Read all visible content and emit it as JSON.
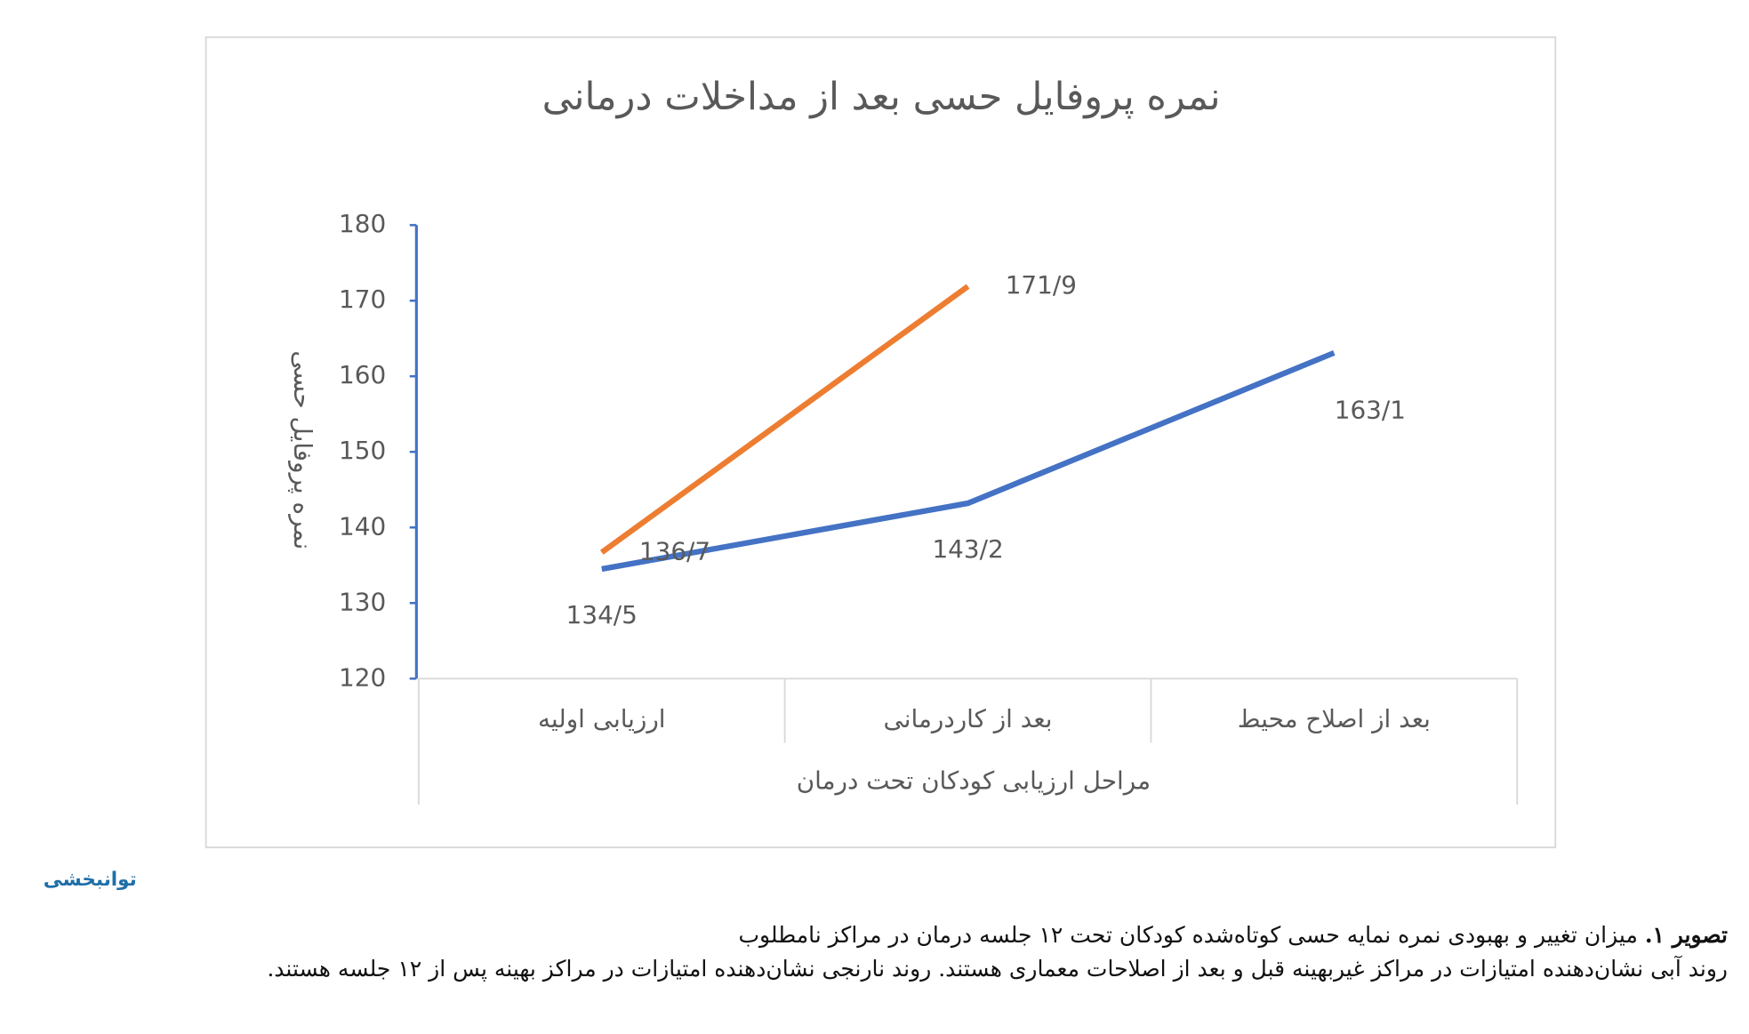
{
  "chart_data": {
    "type": "line",
    "title": "نمره پروفایل حسی بعد از مداخلات درمانی",
    "y_label": "نمره پروفایل حسی",
    "x_label": "مراحل ارزیابی کودکان تحت درمان",
    "categories": [
      "ارزیابی اولیه",
      "بعد از کاردرمانی",
      "بعد از اصلاح محیط"
    ],
    "series": [
      {
        "color": "#4472c4",
        "values": [
          134.5,
          143.2,
          163.1
        ],
        "value_labels": [
          "134/5",
          "143/2",
          "163/1"
        ]
      },
      {
        "color": "#ed7d31",
        "values": [
          136.7,
          171.9,
          null
        ],
        "value_labels": [
          "136/7",
          "171/9",
          null
        ]
      }
    ],
    "ylim": [
      120,
      180
    ],
    "yticks": [
      120,
      130,
      140,
      150,
      160,
      170,
      180
    ],
    "grid": false
  },
  "logo": "توانبخشی",
  "caption": {
    "label": "تصویر ۱.",
    "line1": "میزان تغییر و بهبودی نمره نمایه حسی کوتاه‌شده کودکان تحت ۱۲ جلسه درمان در مراکز نامطلوب",
    "line2": "روند آبی نشان‌دهنده امتیازات در مراکز غیربهینه قبل و بعد از اصلاحات معماری هستند. روند نارنجی نشان‌دهنده امتیازات در مراکز بهینه پس از ۱۲ جلسه هستند."
  }
}
